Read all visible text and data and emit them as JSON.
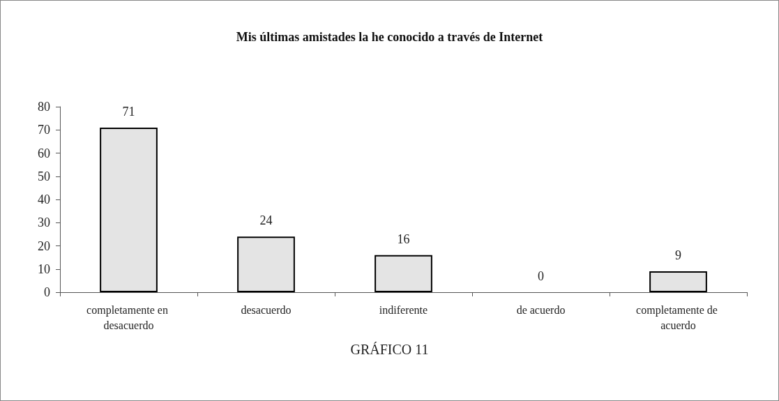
{
  "chart_data": {
    "type": "bar",
    "title": "Mis últimas amistades la he conocido a través de Internet",
    "categories": [
      "completamente en desacuerdo",
      "desacuerdo",
      "indiferente",
      "de acuerdo",
      "completamente de acuerdo"
    ],
    "values": [
      71,
      24,
      16,
      0,
      9
    ],
    "color": "#e4e4e4",
    "ylim": [
      0,
      80
    ],
    "yticks": [
      0,
      10,
      20,
      30,
      40,
      50,
      60,
      70,
      80
    ],
    "grid": false,
    "data_labels": true,
    "annotations": [
      "GRÁFICO 11"
    ]
  }
}
